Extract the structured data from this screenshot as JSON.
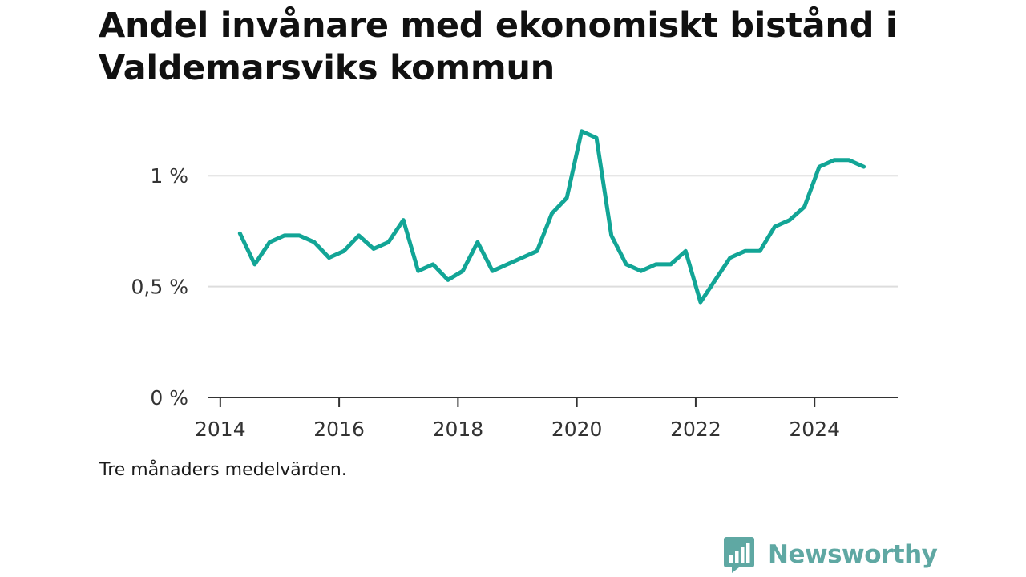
{
  "chart_data": {
    "type": "line",
    "title": "Andel invånare med ekonomiskt bistånd i Valdemarsviks kommun",
    "note": "Tre månaders medelvärden.",
    "xlabel": "",
    "ylabel": "",
    "x_ticks": [
      {
        "value": 2014,
        "label": "2014"
      },
      {
        "value": 2016,
        "label": "2016"
      },
      {
        "value": 2018,
        "label": "2018"
      },
      {
        "value": 2020,
        "label": "2020"
      },
      {
        "value": 2022,
        "label": "2022"
      },
      {
        "value": 2024,
        "label": "2024"
      }
    ],
    "y_ticks": [
      {
        "value": 0,
        "label": "0 %"
      },
      {
        "value": 0.5,
        "label": "0,5 %"
      },
      {
        "value": 1,
        "label": "1 %"
      }
    ],
    "xlim": [
      2013.8,
      2025.4
    ],
    "ylim": [
      0,
      1.25
    ],
    "grid": "horizontal",
    "line_color": "#12a596",
    "series": [
      {
        "x": [
          2014.33,
          2014.58,
          2014.83,
          2015.08,
          2015.33,
          2015.58,
          2015.83,
          2016.08,
          2016.33,
          2016.58,
          2016.83,
          2017.08,
          2017.33,
          2017.58,
          2017.83,
          2018.08,
          2018.33,
          2018.58,
          2018.83,
          2019.08,
          2019.33,
          2019.58,
          2019.83,
          2020.08,
          2020.33,
          2020.58,
          2020.83,
          2021.08,
          2021.33,
          2021.58,
          2021.83,
          2022.08,
          2022.33,
          2022.58,
          2022.83,
          2023.08,
          2023.33,
          2023.58,
          2023.83,
          2024.08,
          2024.33,
          2024.58,
          2024.83
        ],
        "y": [
          0.74,
          0.6,
          0.7,
          0.73,
          0.73,
          0.7,
          0.63,
          0.66,
          0.73,
          0.67,
          0.7,
          0.8,
          0.57,
          0.6,
          0.53,
          0.57,
          0.7,
          0.57,
          0.6,
          0.63,
          0.66,
          0.83,
          0.9,
          1.2,
          1.17,
          0.73,
          0.6,
          0.57,
          0.6,
          0.6,
          0.66,
          0.43,
          0.53,
          0.63,
          0.66,
          0.66,
          0.77,
          0.8,
          0.86,
          1.04,
          1.07,
          1.07,
          1.04
        ]
      }
    ]
  },
  "footer": {
    "brand": "Newsworthy",
    "brand_color": "#5fa8a3",
    "icon": "bar-chart-speech-bubble-icon"
  }
}
